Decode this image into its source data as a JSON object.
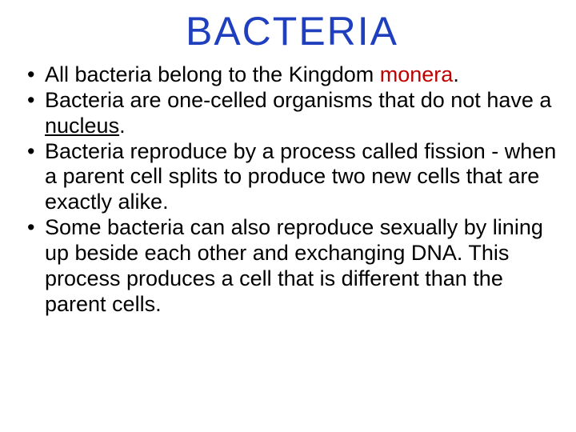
{
  "slide": {
    "title": "BACTERIA",
    "title_color": "#1f3fbf",
    "title_fontsize": 50,
    "body_color": "#000000",
    "monera_color": "#c00000",
    "body_fontsize": 27,
    "line_height": 1.18,
    "bullets": {
      "b1_prefix": "All bacteria belong to the Kingdom ",
      "b1_monera": "monera",
      "b1_period": ".",
      "b2_prefix": "Bacteria are one-celled organisms that do not have a ",
      "b2_nucleus": "nucleus",
      "b2_period": ".",
      "b3": "Bacteria reproduce by a process called fission - when a parent cell splits to produce two new cells that are exactly alike.",
      "b4": "Some bacteria can also reproduce sexually by lining up beside each other and exchanging DNA. This process produces a cell that is different than the parent cells."
    }
  }
}
